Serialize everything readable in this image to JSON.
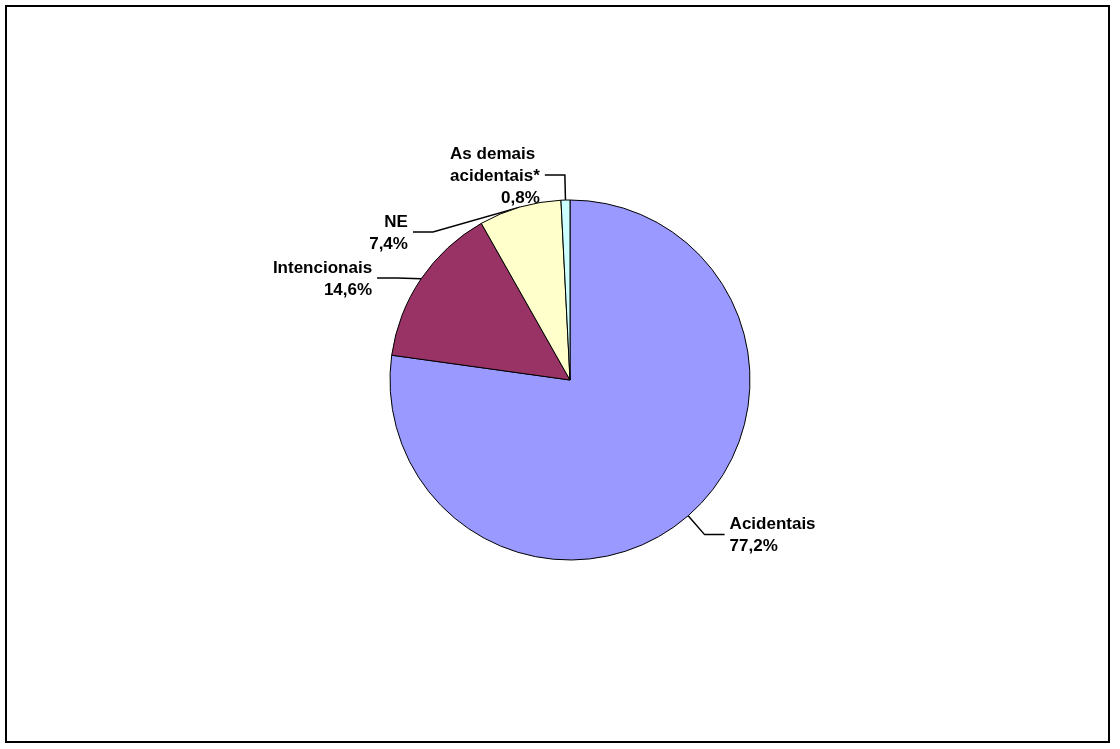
{
  "chart_data": {
    "type": "pie",
    "categories": [
      "Acidentais",
      "Intencionais",
      "NE",
      "As demais acidentais*"
    ],
    "values": [
      77.2,
      14.6,
      7.4,
      0.8
    ],
    "value_labels": [
      "77,2%",
      "14,6%",
      "7,4%",
      "0,8%"
    ],
    "colors": [
      "#9999ff",
      "#993366",
      "#ffffcc",
      "#ccffff"
    ],
    "legend": false
  }
}
